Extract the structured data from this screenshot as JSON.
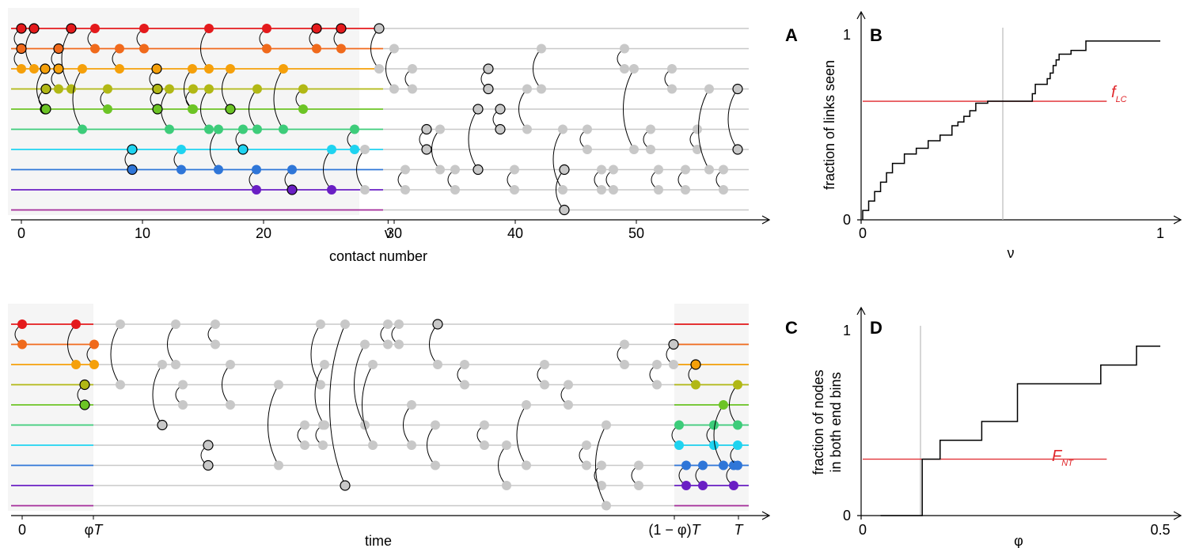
{
  "panels": {
    "A": {
      "letter": "A",
      "xlabel": "contact number",
      "xticks": [
        "0",
        "10",
        "20",
        "ν",
        "30",
        "40",
        "50"
      ]
    },
    "B": {
      "letter": "B",
      "ylabel": "fraction of links seen",
      "xlabel": "ν",
      "xticks": [
        "0",
        "1"
      ],
      "yticks": [
        "0",
        "1"
      ],
      "ref_label_main": "f",
      "ref_label_sub": "LC"
    },
    "C": {
      "letter": "C",
      "xlabel": "time",
      "xtick_0": "0",
      "xtick_phi": "φ",
      "xtick_1minusphi": "(1 − φ)",
      "xtick_T_symbol": "T"
    },
    "D": {
      "letter": "D",
      "ylabel_line1": "fraction of nodes",
      "ylabel_line2": "in both end bins",
      "xlabel": "φ",
      "xticks": [
        "0",
        "0.5"
      ],
      "yticks": [
        "0",
        "1"
      ],
      "ref_label_main": "F",
      "ref_label_sub": "NT"
    }
  },
  "colors": {
    "nodes": [
      "#e41a1c",
      "#f06a1c",
      "#f5a00a",
      "#b1b815",
      "#6cc425",
      "#3dcc7a",
      "#1fd3f0",
      "#2f76d8",
      "#6a1fc4",
      "#a42c9a"
    ],
    "inactive": "#c8c8c8",
    "reference_line": "#e0262a",
    "shade": "#f5f5f5"
  },
  "chart_data": [
    {
      "panel": "A",
      "type": "timeline",
      "x_range": [
        0,
        58
      ],
      "x_tick_values": [
        0,
        10,
        20,
        29.5,
        30,
        40,
        50
      ],
      "nu": 29.5,
      "n_nodes": 10,
      "contacts_before_nu": [
        [
          0,
          0
        ],
        [
          1,
          0
        ],
        [
          4,
          0
        ],
        [
          6,
          0
        ],
        [
          10,
          0
        ],
        [
          15,
          0
        ],
        [
          20,
          0
        ],
        [
          24,
          0
        ],
        [
          26,
          0
        ],
        [
          0,
          1
        ],
        [
          2,
          2
        ],
        [
          3,
          1
        ],
        [
          8,
          1
        ],
        [
          4,
          3
        ],
        [
          2,
          3
        ],
        [
          5,
          2
        ],
        [
          9,
          5
        ],
        [
          10,
          2
        ],
        [
          11,
          4
        ],
        [
          12,
          3
        ],
        [
          14,
          3
        ],
        [
          18,
          2
        ],
        [
          17,
          4
        ],
        [
          20,
          3
        ],
        [
          22,
          4
        ],
        [
          19,
          5
        ],
        [
          27,
          5
        ],
        [
          15,
          7
        ],
        [
          13,
          6
        ],
        [
          16,
          7
        ],
        [
          22,
          8
        ],
        [
          24,
          8
        ],
        [
          26,
          8
        ],
        [
          9,
          7
        ],
        [
          7,
          3
        ],
        [
          7,
          4
        ]
      ],
      "contacts_after_nu": [
        [
          30,
          0
        ],
        [
          32,
          2
        ],
        [
          37,
          4
        ],
        [
          42,
          3
        ],
        [
          46,
          1
        ],
        [
          51,
          1
        ],
        [
          56,
          3
        ],
        [
          58,
          4
        ],
        [
          33,
          5
        ],
        [
          35,
          7
        ],
        [
          39,
          5
        ],
        [
          44,
          9
        ],
        [
          47,
          7
        ],
        [
          50,
          7
        ],
        [
          55,
          7
        ],
        [
          34,
          8
        ],
        [
          36,
          8
        ],
        [
          43,
          8
        ],
        [
          48,
          8
        ]
      ]
    },
    {
      "panel": "B",
      "type": "line",
      "x": [
        0,
        0.02,
        0.04,
        0.06,
        0.08,
        0.1,
        0.14,
        0.18,
        0.22,
        0.26,
        0.3,
        0.32,
        0.34,
        0.36,
        0.38,
        0.42,
        0.5,
        0.55,
        0.57,
        0.58,
        0.62,
        0.63,
        0.64,
        0.65,
        0.66,
        0.7,
        0.75,
        1.0
      ],
      "y": [
        0.05,
        0.1,
        0.15,
        0.2,
        0.25,
        0.3,
        0.35,
        0.38,
        0.42,
        0.45,
        0.5,
        0.52,
        0.55,
        0.58,
        0.62,
        0.63,
        0.63,
        0.63,
        0.67,
        0.72,
        0.75,
        0.78,
        0.82,
        0.85,
        0.88,
        0.9,
        0.95,
        0.95
      ],
      "reference_y": 0.63,
      "reference_label": "f_LC",
      "nu_marker_x": 0.48,
      "xlim": [
        0,
        1
      ],
      "ylim": [
        0,
        1
      ]
    },
    {
      "panel": "C",
      "type": "timeline",
      "time_axis_labels": [
        "0",
        "φT",
        "(1 − φ)T",
        "T"
      ],
      "n_nodes": 10
    },
    {
      "panel": "D",
      "type": "line",
      "x": [
        0.03,
        0.1,
        0.1,
        0.13,
        0.2,
        0.26,
        0.4,
        0.46,
        0.5
      ],
      "y": [
        0.0,
        0.1,
        0.3,
        0.4,
        0.5,
        0.7,
        0.8,
        0.9,
        0.9
      ],
      "reference_y": 0.3,
      "reference_label": "F_NT",
      "phi_marker_x": 0.1,
      "xlim": [
        0,
        0.5
      ],
      "ylim": [
        0,
        1
      ]
    }
  ]
}
